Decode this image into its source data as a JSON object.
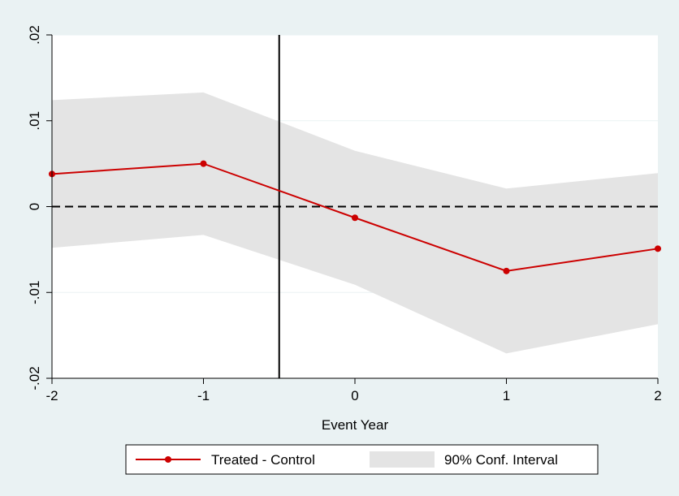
{
  "chart_data": {
    "type": "line",
    "title": "",
    "xlabel": "Event Year",
    "ylabel": "",
    "x": [
      -2,
      -1,
      0,
      1,
      2
    ],
    "xlim": [
      -2,
      2
    ],
    "ylim": [
      -0.02,
      0.02
    ],
    "x_ticks": [
      -2,
      -1,
      0,
      1,
      2
    ],
    "x_tick_labels": [
      "-2",
      "-1",
      "0",
      "1",
      "2"
    ],
    "y_ticks": [
      -0.02,
      -0.01,
      0,
      0.01,
      0.02
    ],
    "y_tick_labels": [
      "-.02",
      "-.01",
      "0",
      ".01",
      ".02"
    ],
    "grid": true,
    "series": [
      {
        "name": "Treated - Control",
        "type": "line",
        "color": "#cc0000",
        "values": [
          0.0038,
          0.005,
          -0.0013,
          -0.0075,
          -0.0049
        ]
      },
      {
        "name": "90% Conf. Interval",
        "type": "area",
        "color": "#e4e4e4",
        "lower": [
          -0.0048,
          -0.0033,
          -0.0091,
          -0.0171,
          -0.0137
        ],
        "upper": [
          0.0124,
          0.0133,
          0.0065,
          0.0021,
          0.0039
        ]
      }
    ],
    "reference_lines": {
      "horizontal_y": 0,
      "horizontal_style": "dashed",
      "vertical_x": -0.5,
      "vertical_style": "solid"
    },
    "legend": {
      "position": "bottom",
      "entries": [
        "Treated - Control",
        "90% Conf. Interval"
      ]
    },
    "background": "#eaf2f3",
    "plot_background": "#ffffff"
  }
}
